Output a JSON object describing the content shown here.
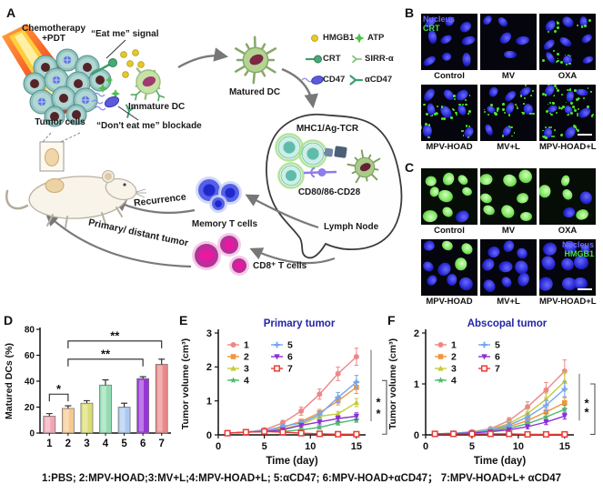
{
  "panel_letters": {
    "a": "A",
    "b": "B",
    "c": "C",
    "d": "D",
    "e": "E",
    "f": "F"
  },
  "figure": {
    "caption": "1:PBS; 2:MPV-HOAD;3:MV+L;4:MPV-HOAD+L; 5:αCD47; 6:MPV-HOAD+αCD47； 7:MPV-HOAD+L+ αCD47"
  },
  "panel_a": {
    "chemo_line1": "Chemotherapy",
    "chemo_line2": "+PDT",
    "eat_me": "“Eat me” signal",
    "dont_eat_me": "“Don't eat me” blockade",
    "tumor_cells": "Tumor cells",
    "immature_dc": "Immature DC",
    "matured_dc": "Matured DC",
    "legend": [
      {
        "icon": "hmgb1-icon",
        "label": "HMGB1"
      },
      {
        "icon": "atp-icon",
        "label": "ATP"
      },
      {
        "icon": "crt-icon",
        "label": "CRT"
      },
      {
        "icon": "sirpa-icon",
        "label": "SIRR-α"
      },
      {
        "icon": "cd47-icon",
        "label": "CD47"
      },
      {
        "icon": "acd47-icon",
        "label": "αCD47"
      }
    ],
    "mhc": "MHC1/Ag-TCR",
    "cd80": "CD80/86-CD28",
    "lymph_node": "Lymph Node",
    "recurrence": "Recurrence",
    "memory_t": "Memory T cells",
    "primary_distant": "Primary/ distant tumor",
    "cd8_t": "CD8⁺ T cells"
  },
  "panel_b": {
    "overlay": {
      "tile": 0,
      "line1": "Nucleus",
      "line2": "CRT",
      "color1": "#6b6bff",
      "color2": "#46e24a"
    },
    "tiles": [
      {
        "label": "Control",
        "type": "blue"
      },
      {
        "label": "MV",
        "type": "blue"
      },
      {
        "label": "OXA",
        "type": "blue-green"
      },
      {
        "label": "MPV-HOAD",
        "type": "blue-green"
      },
      {
        "label": "MV+L",
        "type": "blue-green"
      },
      {
        "label": "MPV-HOAD+L",
        "type": "blue-green-strong",
        "scalebar": true
      }
    ]
  },
  "panel_c": {
    "overlay": {
      "tile": 5,
      "line1": "Nucleus",
      "line2": "HMGB1",
      "color1": "#6b6bff",
      "color2": "#46e24a"
    },
    "tiles": [
      {
        "label": "Control",
        "type": "green-high"
      },
      {
        "label": "MV",
        "type": "green-high"
      },
      {
        "label": "OXA",
        "type": "green-mid"
      },
      {
        "label": "MPV-HOAD",
        "type": "green-low"
      },
      {
        "label": "MV+L",
        "type": "green-rare"
      },
      {
        "label": "MPV-HOAD+L",
        "type": "blue-only",
        "scalebar": true
      }
    ]
  },
  "chart_data": [
    {
      "id": "d",
      "type": "bar",
      "categories": [
        "1",
        "2",
        "3",
        "4",
        "5",
        "6",
        "7"
      ],
      "values": [
        13,
        19,
        23,
        37,
        20,
        42,
        53
      ],
      "errors": [
        2,
        2,
        2,
        4,
        3,
        1.5,
        4
      ],
      "bar_colors": [
        "#f2a6b4",
        "#f6c98e",
        "#dade72",
        "#92dcb2",
        "#abc8f0",
        "#9a33da",
        "#ec8888"
      ],
      "ylabel": "Matured DCs (%)",
      "ylim": [
        0,
        80
      ],
      "yticks": [
        0,
        20,
        40,
        60,
        80
      ],
      "significance": [
        {
          "from": 0,
          "to": 1,
          "y": 30,
          "label": "*"
        },
        {
          "from": 1,
          "to": 5,
          "y": 57,
          "label": "**"
        },
        {
          "from": 1,
          "to": 6,
          "y": 71,
          "label": "**"
        }
      ]
    },
    {
      "id": "e",
      "type": "line",
      "title": "Primary tumor",
      "title_color": "#2424a8",
      "xlabel": "Time (day)",
      "ylabel": "Tumor volume (cm³)",
      "x": [
        1,
        3,
        5,
        7,
        9,
        11,
        13,
        15
      ],
      "xlim": [
        0,
        16
      ],
      "ylim": [
        0,
        3
      ],
      "xticks": [
        0,
        5,
        10,
        15
      ],
      "yticks": [
        0,
        1,
        2,
        3
      ],
      "series": [
        {
          "name": "1",
          "color": "#ee8787",
          "marker": "circle",
          "values": [
            0.05,
            0.08,
            0.15,
            0.35,
            0.7,
            1.2,
            1.8,
            2.3
          ],
          "errors": [
            0.02,
            0.02,
            0.03,
            0.08,
            0.12,
            0.15,
            0.2,
            0.25
          ]
        },
        {
          "name": "2",
          "color": "#f0953e",
          "marker": "square",
          "values": [
            0.05,
            0.08,
            0.12,
            0.22,
            0.4,
            0.65,
            1.0,
            1.4
          ],
          "errors": [
            0.02,
            0.02,
            0.03,
            0.05,
            0.06,
            0.1,
            0.12,
            0.18
          ]
        },
        {
          "name": "3",
          "color": "#c6cc3b",
          "marker": "triangle",
          "values": [
            0.05,
            0.08,
            0.1,
            0.18,
            0.3,
            0.55,
            0.62,
            0.95
          ],
          "errors": [
            0.02,
            0.02,
            0.02,
            0.04,
            0.05,
            0.08,
            0.07,
            0.12
          ]
        },
        {
          "name": "4",
          "color": "#4cb86f",
          "marker": "star",
          "values": [
            0.05,
            0.08,
            0.1,
            0.1,
            0.15,
            0.22,
            0.35,
            0.45
          ],
          "errors": [
            0.02,
            0.02,
            0.02,
            0.03,
            0.04,
            0.05,
            0.06,
            0.08
          ]
        },
        {
          "name": "5",
          "color": "#74a4f3",
          "marker": "plus",
          "values": [
            0.05,
            0.08,
            0.12,
            0.25,
            0.35,
            0.6,
            1.1,
            1.55
          ],
          "errors": [
            0.02,
            0.02,
            0.03,
            0.05,
            0.06,
            0.1,
            0.15,
            0.2
          ]
        },
        {
          "name": "6",
          "color": "#8b2fd8",
          "marker": "tri-down",
          "values": [
            0.05,
            0.08,
            0.1,
            0.15,
            0.28,
            0.38,
            0.48,
            0.55
          ],
          "errors": [
            0.02,
            0.02,
            0.02,
            0.03,
            0.05,
            0.06,
            0.08,
            0.1
          ]
        },
        {
          "name": "7",
          "color": "#e83c38",
          "marker": "square-open",
          "values": [
            0.05,
            0.08,
            0.1,
            0.08,
            0.05,
            0.03,
            0.02,
            0.02
          ],
          "errors": [
            0.02,
            0.02,
            0.02,
            0.02,
            0.02,
            0.02,
            0.02,
            0.03
          ]
        }
      ],
      "sig": {
        "line": [
          2.5,
          0.4
        ],
        "bracket": [
          1.6,
          0.02
        ],
        "stars_y": [
          0.95,
          0.62
        ]
      }
    },
    {
      "id": "f",
      "type": "line",
      "title": "Abscopal tumor",
      "title_color": "#2424a8",
      "xlabel": "Time (day)",
      "ylabel": "Tumor volume (cm³)",
      "x": [
        1,
        3,
        5,
        7,
        9,
        11,
        13,
        15
      ],
      "xlim": [
        0,
        16
      ],
      "ylim": [
        0,
        2
      ],
      "xticks": [
        0,
        5,
        10,
        15
      ],
      "yticks": [
        0,
        1,
        2
      ],
      "series": [
        {
          "name": "1",
          "color": "#ee8787",
          "marker": "circle",
          "values": [
            0.02,
            0.03,
            0.06,
            0.12,
            0.28,
            0.55,
            0.88,
            1.25
          ],
          "errors": [
            0.01,
            0.01,
            0.02,
            0.03,
            0.06,
            0.1,
            0.15,
            0.22
          ]
        },
        {
          "name": "2",
          "color": "#f0953e",
          "marker": "square",
          "values": [
            0.02,
            0.03,
            0.05,
            0.09,
            0.16,
            0.28,
            0.45,
            0.63
          ],
          "errors": [
            0.01,
            0.01,
            0.02,
            0.02,
            0.04,
            0.06,
            0.08,
            0.1
          ]
        },
        {
          "name": "3",
          "color": "#c6cc3b",
          "marker": "triangle",
          "values": [
            0.02,
            0.03,
            0.06,
            0.11,
            0.22,
            0.42,
            0.7,
            1.05
          ],
          "errors": [
            0.01,
            0.01,
            0.02,
            0.03,
            0.05,
            0.08,
            0.12,
            0.18
          ]
        },
        {
          "name": "4",
          "color": "#4cb86f",
          "marker": "star",
          "values": [
            0.02,
            0.03,
            0.05,
            0.08,
            0.13,
            0.22,
            0.35,
            0.5
          ],
          "errors": [
            0.01,
            0.01,
            0.02,
            0.02,
            0.03,
            0.05,
            0.07,
            0.08
          ]
        },
        {
          "name": "5",
          "color": "#74a4f3",
          "marker": "plus",
          "values": [
            0.02,
            0.03,
            0.05,
            0.1,
            0.19,
            0.35,
            0.58,
            0.9
          ],
          "errors": [
            0.01,
            0.01,
            0.02,
            0.03,
            0.04,
            0.07,
            0.1,
            0.15
          ]
        },
        {
          "name": "6",
          "color": "#8b2fd8",
          "marker": "tri-down",
          "values": [
            0.02,
            0.02,
            0.04,
            0.06,
            0.1,
            0.16,
            0.25,
            0.37
          ],
          "errors": [
            0.01,
            0.01,
            0.01,
            0.02,
            0.03,
            0.04,
            0.05,
            0.06
          ]
        },
        {
          "name": "7",
          "color": "#e83c38",
          "marker": "square-open",
          "values": [
            0.02,
            0.02,
            0.02,
            0.02,
            0.02,
            0.01,
            0.01,
            0.01
          ],
          "errors": [
            0.01,
            0.01,
            0.01,
            0.01,
            0.01,
            0.01,
            0.01,
            0.01
          ]
        }
      ],
      "sig": {
        "line": [
          1.2,
          0.28
        ],
        "bracket": [
          1.0,
          0.01
        ],
        "stars_y": [
          0.62,
          0.44
        ]
      }
    }
  ]
}
